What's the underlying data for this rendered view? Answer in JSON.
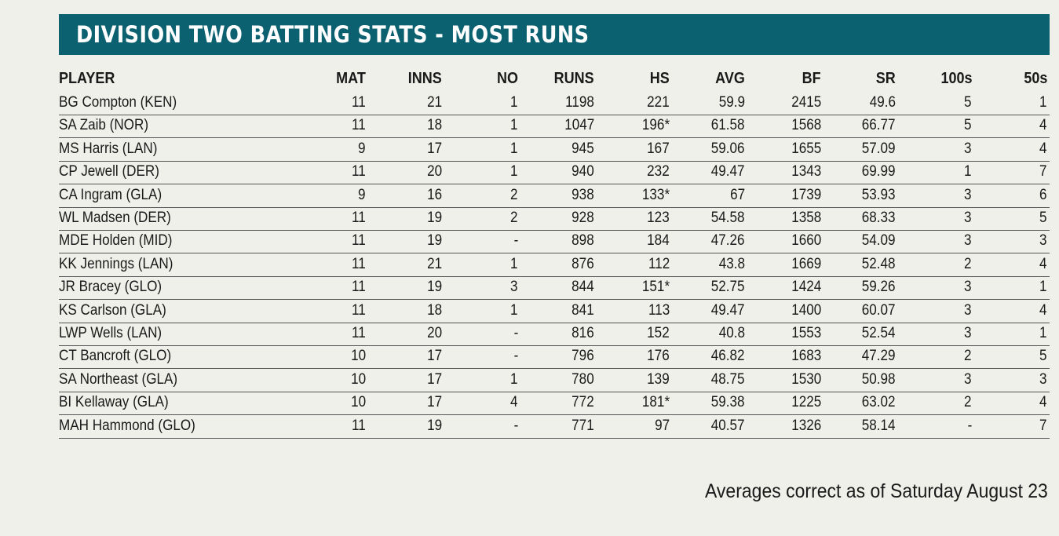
{
  "header": {
    "title": "DIVISION TWO BATTING STATS - MOST RUNS"
  },
  "table": {
    "columns": [
      "PLAYER",
      "MAT",
      "INNS",
      "NO",
      "RUNS",
      "HS",
      "AVG",
      "BF",
      "SR",
      "100s",
      "50s"
    ],
    "rows": [
      [
        "BG Compton (KEN)",
        "11",
        "21",
        "1",
        "1198",
        "221",
        "59.9",
        "2415",
        "49.6",
        "5",
        "1"
      ],
      [
        "SA Zaib (NOR)",
        "11",
        "18",
        "1",
        "1047",
        "196*",
        "61.58",
        "1568",
        "66.77",
        "5",
        "4"
      ],
      [
        "MS Harris (LAN)",
        "9",
        "17",
        "1",
        "945",
        "167",
        "59.06",
        "1655",
        "57.09",
        "3",
        "4"
      ],
      [
        "CP Jewell (DER)",
        "11",
        "20",
        "1",
        "940",
        "232",
        "49.47",
        "1343",
        "69.99",
        "1",
        "7"
      ],
      [
        "CA Ingram (GLA)",
        "9",
        "16",
        "2",
        "938",
        "133*",
        "67",
        "1739",
        "53.93",
        "3",
        "6"
      ],
      [
        "WL Madsen (DER)",
        "11",
        "19",
        "2",
        "928",
        "123",
        "54.58",
        "1358",
        "68.33",
        "3",
        "5"
      ],
      [
        "MDE Holden (MID)",
        "11",
        "19",
        "-",
        "898",
        "184",
        "47.26",
        "1660",
        "54.09",
        "3",
        "3"
      ],
      [
        "KK Jennings (LAN)",
        "11",
        "21",
        "1",
        "876",
        "112",
        "43.8",
        "1669",
        "52.48",
        "2",
        "4"
      ],
      [
        "JR Bracey (GLO)",
        "11",
        "19",
        "3",
        "844",
        "151*",
        "52.75",
        "1424",
        "59.26",
        "3",
        "1"
      ],
      [
        "KS Carlson (GLA)",
        "11",
        "18",
        "1",
        "841",
        "113",
        "49.47",
        "1400",
        "60.07",
        "3",
        "4"
      ],
      [
        "LWP Wells (LAN)",
        "11",
        "20",
        "-",
        "816",
        "152",
        "40.8",
        "1553",
        "52.54",
        "3",
        "1"
      ],
      [
        "CT Bancroft (GLO)",
        "10",
        "17",
        "-",
        "796",
        "176",
        "46.82",
        "1683",
        "47.29",
        "2",
        "5"
      ],
      [
        "SA Northeast (GLA)",
        "10",
        "17",
        "1",
        "780",
        "139",
        "48.75",
        "1530",
        "50.98",
        "3",
        "3"
      ],
      [
        "BI Kellaway (GLA)",
        "10",
        "17",
        "4",
        "772",
        "181*",
        "59.38",
        "1225",
        "63.02",
        "2",
        "4"
      ],
      [
        "MAH Hammond (GLO)",
        "11",
        "19",
        "-",
        "771",
        "97",
        "40.57",
        "1326",
        "58.14",
        "-",
        "7"
      ]
    ]
  },
  "footer": {
    "note": "Averages correct as of Saturday August 23"
  }
}
